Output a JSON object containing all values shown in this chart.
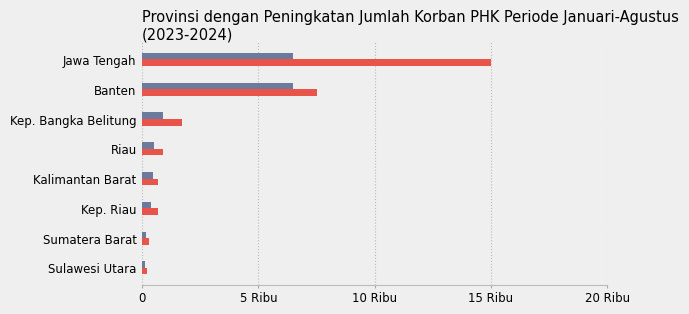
{
  "title": "Provinsi dengan Peningkatan Jumlah Korban PHK Periode Januari-Agustus\n(2023-2024)",
  "categories": [
    "Sulawesi Utara",
    "Sumatera Barat",
    "Kep. Riau",
    "Kalimantan Barat",
    "Riau",
    "Kep. Bangka Belitung",
    "Banten",
    "Jawa Tengah"
  ],
  "values_2023": [
    100,
    150,
    400,
    450,
    500,
    900,
    6500,
    6500
  ],
  "values_2024": [
    200,
    300,
    700,
    700,
    900,
    1700,
    7500,
    15000
  ],
  "color_2023": "#6c7a9c",
  "color_2024": "#e8534a",
  "background_color": "#efefef",
  "xlim": [
    0,
    20000
  ],
  "xticks": [
    0,
    5000,
    10000,
    15000,
    20000
  ],
  "xtick_labels": [
    "0",
    "5 Ribu",
    "10 Ribu",
    "15 Ribu",
    "20 Ribu"
  ],
  "title_fontsize": 10.5,
  "label_fontsize": 8.5,
  "tick_fontsize": 8.5
}
